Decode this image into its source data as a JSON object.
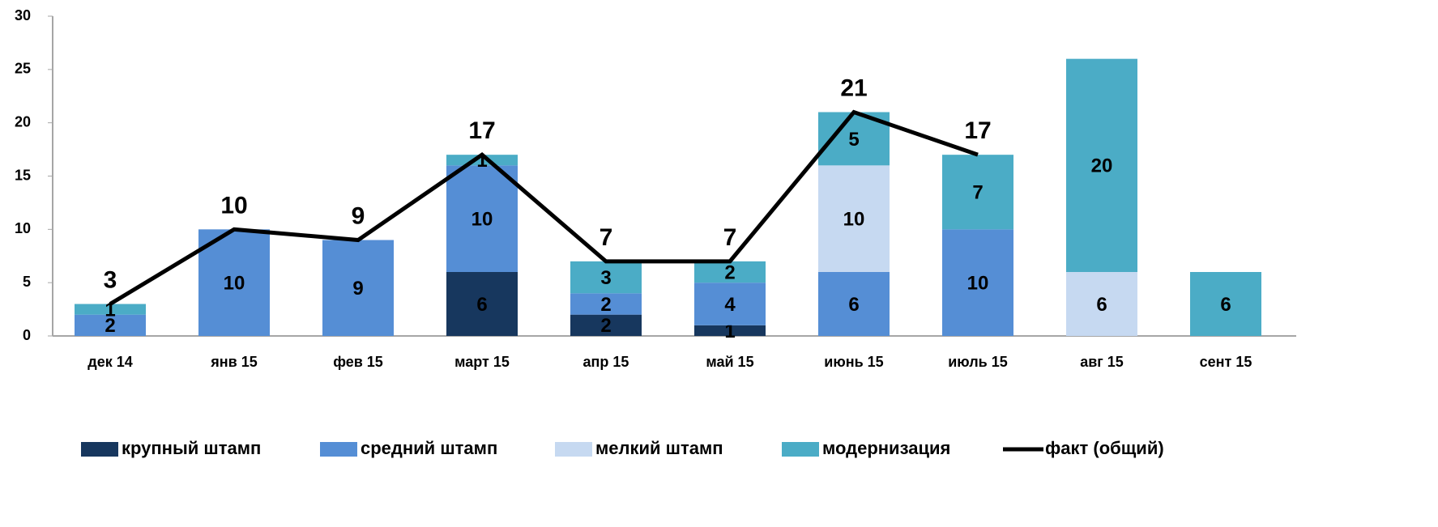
{
  "chart_data": {
    "type": "stacked_bar_line",
    "categories": [
      "дек 14",
      "янв 15",
      "фев 15",
      "март 15",
      "апр 15",
      "май 15",
      "июнь 15",
      "июль 15",
      "авг 15",
      "сент 15"
    ],
    "series": [
      {
        "name": "крупный штамп",
        "color": "#17375e",
        "values": [
          null,
          null,
          null,
          6,
          2,
          1,
          null,
          null,
          null,
          null
        ]
      },
      {
        "name": "средний штамп",
        "color": "#558ed5",
        "values": [
          2,
          10,
          9,
          10,
          2,
          4,
          6,
          10,
          null,
          null
        ]
      },
      {
        "name": "мелкий штамп",
        "color": "#c6d9f1",
        "values": [
          null,
          null,
          null,
          null,
          null,
          null,
          10,
          null,
          6,
          null
        ]
      },
      {
        "name": "модернизация",
        "color": "#4bacc6",
        "values": [
          1,
          null,
          null,
          1,
          3,
          2,
          5,
          7,
          20,
          6
        ]
      }
    ],
    "line": {
      "name": "факт (общий)",
      "color": "#000000",
      "values": [
        3,
        10,
        9,
        17,
        7,
        7,
        21,
        17,
        null,
        null
      ]
    },
    "ylim": [
      0,
      30
    ],
    "yticks": [
      0,
      5,
      10,
      15,
      20,
      25,
      30
    ],
    "legend": "bottom"
  }
}
